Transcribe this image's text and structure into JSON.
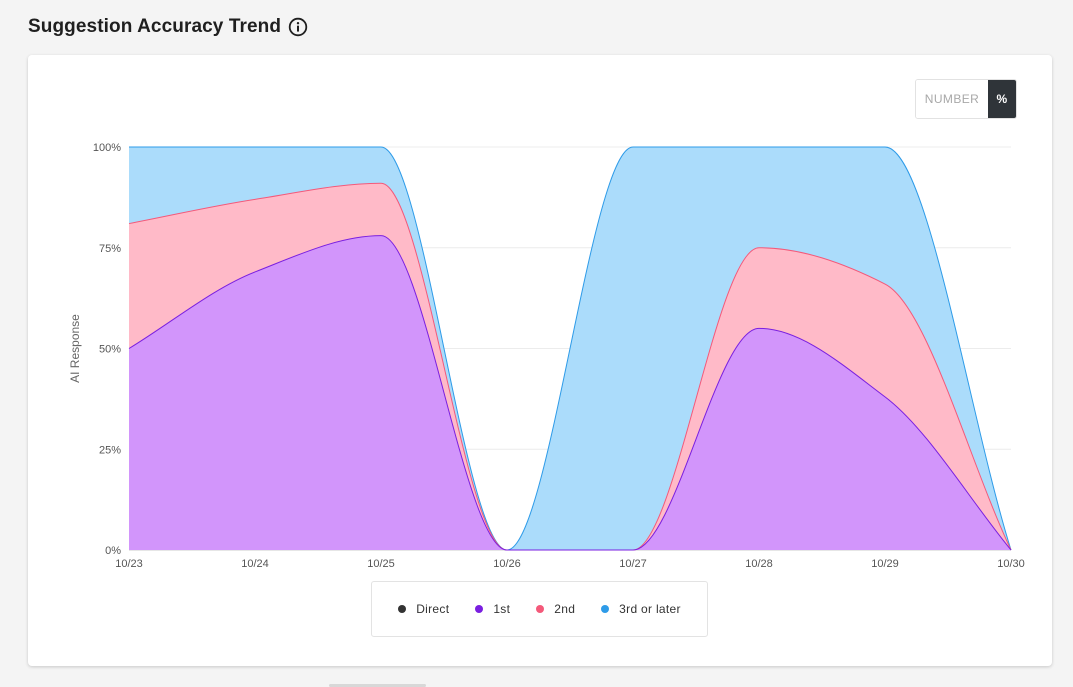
{
  "header": {
    "title": "Suggestion Accuracy Trend",
    "info_icon": "info-circle-icon"
  },
  "toggle": {
    "number_label": "NUMBER",
    "percent_label": "%",
    "active": "%"
  },
  "colors": {
    "direct": "#333333",
    "first": "#7a1fe0",
    "second": "#f4597a",
    "third": "#2e9be8",
    "first_fill": "#d295fb",
    "second_fill": "#ffbac8",
    "third_fill": "#abdcfb"
  },
  "legend": [
    {
      "label": "Direct",
      "color": "#333333"
    },
    {
      "label": "1st",
      "color": "#7a1fe0"
    },
    {
      "label": "2nd",
      "color": "#f4597a"
    },
    {
      "label": "3rd or later",
      "color": "#2e9be8"
    }
  ],
  "chart_data": {
    "type": "area",
    "stacked": true,
    "x": [
      "10/23",
      "10/24",
      "10/25",
      "10/26",
      "10/27",
      "10/28",
      "10/29",
      "10/30"
    ],
    "ylabel": "AI Response",
    "yticks": [
      "0%",
      "25%",
      "50%",
      "75%",
      "100%"
    ],
    "ylim": [
      0,
      100
    ],
    "grid": true,
    "legend_position": "bottom",
    "series": [
      {
        "name": "Direct",
        "values": [
          0,
          0,
          0,
          0,
          0,
          0,
          0,
          0
        ]
      },
      {
        "name": "1st",
        "values": [
          50,
          69,
          78,
          0,
          0,
          55,
          38,
          0
        ]
      },
      {
        "name": "2nd",
        "values": [
          31,
          18,
          13,
          0,
          0,
          20,
          28,
          0
        ]
      },
      {
        "name": "3rd or later",
        "values": [
          19,
          13,
          9,
          0,
          100,
          25,
          34,
          0
        ]
      }
    ]
  }
}
